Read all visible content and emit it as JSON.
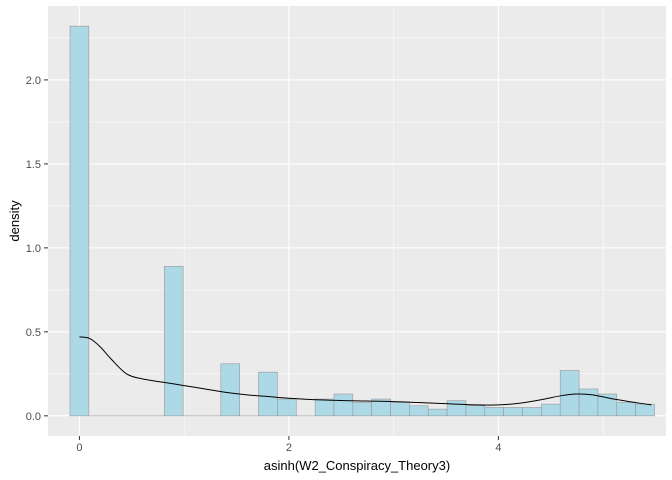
{
  "chart_data": {
    "type": "histogram",
    "xlabel": "asinh(W2_Conspiracy_Theory3)",
    "ylabel": "density",
    "xlim": [
      -0.3,
      5.6
    ],
    "ylim": [
      -0.12,
      2.44
    ],
    "x_ticks": [
      0,
      2,
      4
    ],
    "x_tick_labels": [
      "0",
      "2",
      "4"
    ],
    "y_ticks": [
      0.0,
      0.5,
      1.0,
      1.5,
      2.0
    ],
    "y_tick_labels": [
      "0.0",
      "0.5",
      "1.0",
      "1.5",
      "2.0"
    ],
    "grid": true,
    "bins": [
      {
        "x0": -0.09,
        "x1": 0.09,
        "value": 2.32
      },
      {
        "x0": 0.09,
        "x1": 0.27,
        "value": 0.0
      },
      {
        "x0": 0.27,
        "x1": 0.45,
        "value": 0.0
      },
      {
        "x0": 0.45,
        "x1": 0.63,
        "value": 0.0
      },
      {
        "x0": 0.63,
        "x1": 0.81,
        "value": 0.0
      },
      {
        "x0": 0.81,
        "x1": 0.99,
        "value": 0.89
      },
      {
        "x0": 0.99,
        "x1": 1.17,
        "value": 0.0
      },
      {
        "x0": 1.17,
        "x1": 1.35,
        "value": 0.0
      },
      {
        "x0": 1.35,
        "x1": 1.53,
        "value": 0.31
      },
      {
        "x0": 1.53,
        "x1": 1.71,
        "value": 0.0
      },
      {
        "x0": 1.71,
        "x1": 1.89,
        "value": 0.26
      },
      {
        "x0": 1.89,
        "x1": 2.07,
        "value": 0.1
      },
      {
        "x0": 2.07,
        "x1": 2.25,
        "value": 0.0
      },
      {
        "x0": 2.25,
        "x1": 2.43,
        "value": 0.1
      },
      {
        "x0": 2.43,
        "x1": 2.61,
        "value": 0.13
      },
      {
        "x0": 2.61,
        "x1": 2.79,
        "value": 0.08
      },
      {
        "x0": 2.79,
        "x1": 2.97,
        "value": 0.1
      },
      {
        "x0": 2.97,
        "x1": 3.15,
        "value": 0.08
      },
      {
        "x0": 3.15,
        "x1": 3.33,
        "value": 0.06
      },
      {
        "x0": 3.33,
        "x1": 3.51,
        "value": 0.04
      },
      {
        "x0": 3.51,
        "x1": 3.69,
        "value": 0.09
      },
      {
        "x0": 3.69,
        "x1": 3.87,
        "value": 0.06
      },
      {
        "x0": 3.87,
        "x1": 4.05,
        "value": 0.05
      },
      {
        "x0": 4.05,
        "x1": 4.23,
        "value": 0.05
      },
      {
        "x0": 4.23,
        "x1": 4.41,
        "value": 0.05
      },
      {
        "x0": 4.41,
        "x1": 4.59,
        "value": 0.07
      },
      {
        "x0": 4.59,
        "x1": 4.77,
        "value": 0.27
      },
      {
        "x0": 4.77,
        "x1": 4.95,
        "value": 0.16
      },
      {
        "x0": 4.95,
        "x1": 5.13,
        "value": 0.13
      },
      {
        "x0": 5.13,
        "x1": 5.31,
        "value": 0.08
      },
      {
        "x0": 5.31,
        "x1": 5.49,
        "value": 0.07
      }
    ],
    "density_curve": {
      "x": [
        0.0,
        0.1,
        0.2,
        0.3,
        0.45,
        0.6,
        0.8,
        1.0,
        1.2,
        1.4,
        1.6,
        1.8,
        2.0,
        2.3,
        2.6,
        3.0,
        3.4,
        3.8,
        4.0,
        4.2,
        4.4,
        4.6,
        4.75,
        4.9,
        5.1,
        5.3,
        5.46
      ],
      "y": [
        0.47,
        0.46,
        0.41,
        0.34,
        0.25,
        0.22,
        0.2,
        0.18,
        0.16,
        0.14,
        0.125,
        0.115,
        0.105,
        0.095,
        0.09,
        0.085,
        0.075,
        0.065,
        0.065,
        0.075,
        0.095,
        0.12,
        0.13,
        0.125,
        0.1,
        0.08,
        0.065
      ]
    },
    "colors": {
      "panel": "#ebebeb",
      "grid_major": "#ffffff",
      "bar_fill": "#add8e6",
      "bar_stroke": "#999999",
      "curve": "#000000",
      "tick_mark": "#333333"
    }
  }
}
